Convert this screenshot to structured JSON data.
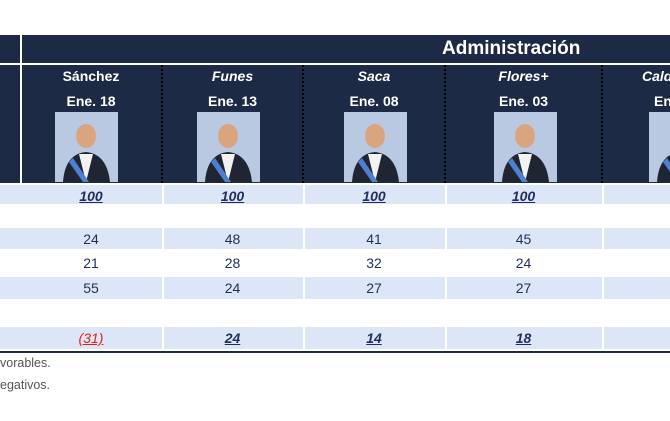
{
  "header": {
    "group": "Administración"
  },
  "columns": [
    {
      "name": "Sánchez",
      "date": "Ene. 18"
    },
    {
      "name": "Funes",
      "date": "Ene. 13"
    },
    {
      "name": "Saca",
      "date": "Ene. 08"
    },
    {
      "name": "Flores+",
      "date": "Ene. 03"
    },
    {
      "name": "Cald",
      "date": "En"
    }
  ],
  "rows": [
    [
      "100",
      "100",
      "100",
      "100"
    ],
    [],
    [
      "24",
      "48",
      "41",
      "45"
    ],
    [
      "21",
      "28",
      "32",
      "24"
    ],
    [
      "55",
      "24",
      "27",
      "27"
    ],
    [],
    [
      "(31)",
      "24",
      "14",
      "18"
    ]
  ],
  "footnotes": [
    "vorables.",
    "egativos."
  ]
}
